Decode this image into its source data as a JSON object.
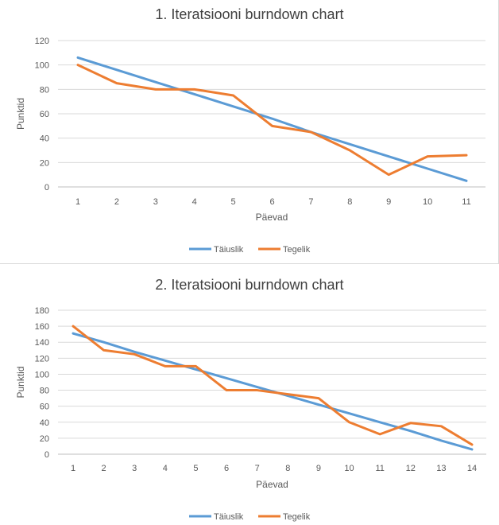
{
  "chart_data": [
    {
      "type": "line",
      "title": "1. Iteratsiooni burndown chart",
      "xlabel": "Päevad",
      "ylabel": "Punktid",
      "categories": [
        "1",
        "2",
        "3",
        "4",
        "5",
        "6",
        "7",
        "8",
        "9",
        "10",
        "11"
      ],
      "ylim": [
        0,
        120
      ],
      "yticks": [
        0,
        20,
        40,
        60,
        80,
        100,
        120
      ],
      "grid": true,
      "legend": "bottom",
      "series": [
        {
          "name": "Täiuslik",
          "color": "#5b9bd5",
          "values": [
            106,
            96,
            86,
            76,
            66,
            56,
            45,
            35,
            25,
            15,
            5
          ]
        },
        {
          "name": "Tegelik",
          "color": "#ed7d31",
          "values": [
            100,
            85,
            80,
            80,
            75,
            50,
            45,
            30,
            10,
            25,
            26
          ]
        }
      ]
    },
    {
      "type": "line",
      "title": "2. Iteratsiooni burndown chart",
      "xlabel": "Päevad",
      "ylabel": "Punktid",
      "categories": [
        "1",
        "2",
        "3",
        "4",
        "5",
        "6",
        "7",
        "8",
        "9",
        "10",
        "11",
        "12",
        "13",
        "14"
      ],
      "ylim": [
        0,
        180
      ],
      "yticks": [
        0,
        20,
        40,
        60,
        80,
        100,
        120,
        140,
        160,
        180
      ],
      "grid": true,
      "legend": "bottom",
      "series": [
        {
          "name": "Täiuslik",
          "color": "#5b9bd5",
          "values": [
            151,
            140,
            128,
            117,
            106,
            95,
            84,
            73,
            62,
            51,
            40,
            29,
            17,
            6
          ]
        },
        {
          "name": "Tegelik",
          "color": "#ed7d31",
          "values": [
            160,
            130,
            125,
            110,
            110,
            80,
            80,
            75,
            70,
            40,
            25,
            39,
            35,
            12
          ]
        }
      ]
    }
  ]
}
